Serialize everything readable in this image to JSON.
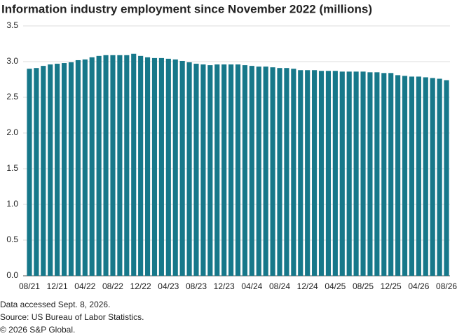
{
  "chart_data": {
    "type": "bar",
    "title": "Information industry employment since November 2022 (millions)",
    "categories": [
      "08/21",
      null,
      null,
      null,
      "12/21",
      null,
      null,
      null,
      "04/22",
      null,
      null,
      null,
      "08/22",
      null,
      null,
      null,
      "12/22",
      null,
      null,
      null,
      "04/23",
      null,
      null,
      null,
      "08/23",
      null,
      null,
      null,
      "12/23",
      null,
      null,
      null,
      "04/24",
      null,
      null,
      null,
      "08/24",
      null,
      null,
      null,
      "12/24",
      null,
      null,
      null,
      "04/25",
      null,
      null,
      null,
      "08/25",
      null,
      null,
      null,
      "12/25",
      null,
      null,
      null,
      "04/26",
      null,
      null,
      null,
      "08/26"
    ],
    "values": [
      2.9,
      2.91,
      2.94,
      2.96,
      2.97,
      2.98,
      2.99,
      3.02,
      3.03,
      3.06,
      3.08,
      3.09,
      3.09,
      3.09,
      3.09,
      3.11,
      3.08,
      3.06,
      3.05,
      3.05,
      3.04,
      3.03,
      3.01,
      2.99,
      2.97,
      2.96,
      2.95,
      2.96,
      2.96,
      2.96,
      2.96,
      2.95,
      2.94,
      2.93,
      2.93,
      2.92,
      2.91,
      2.91,
      2.9,
      2.88,
      2.88,
      2.88,
      2.87,
      2.87,
      2.87,
      2.86,
      2.86,
      2.86,
      2.86,
      2.85,
      2.85,
      2.84,
      2.84,
      2.81,
      2.8,
      2.79,
      2.79,
      2.78,
      2.77,
      2.76,
      2.74
    ],
    "color": "#17788a",
    "ylim": [
      0,
      3.5
    ],
    "yticks": [
      {
        "value": 0,
        "label": "0.0"
      },
      0.5,
      {
        "value": 1,
        "label": "1.0"
      },
      1.5,
      {
        "value": 2,
        "label": "2.0"
      },
      2.5,
      {
        "value": 3,
        "label": "3.0"
      },
      3.5
    ],
    "grid": true,
    "notes": [
      "Data accessed Sept. 8, 2026.",
      "Source: US Bureau of Labor Statistics.",
      "© 2026 S&P Global."
    ]
  }
}
